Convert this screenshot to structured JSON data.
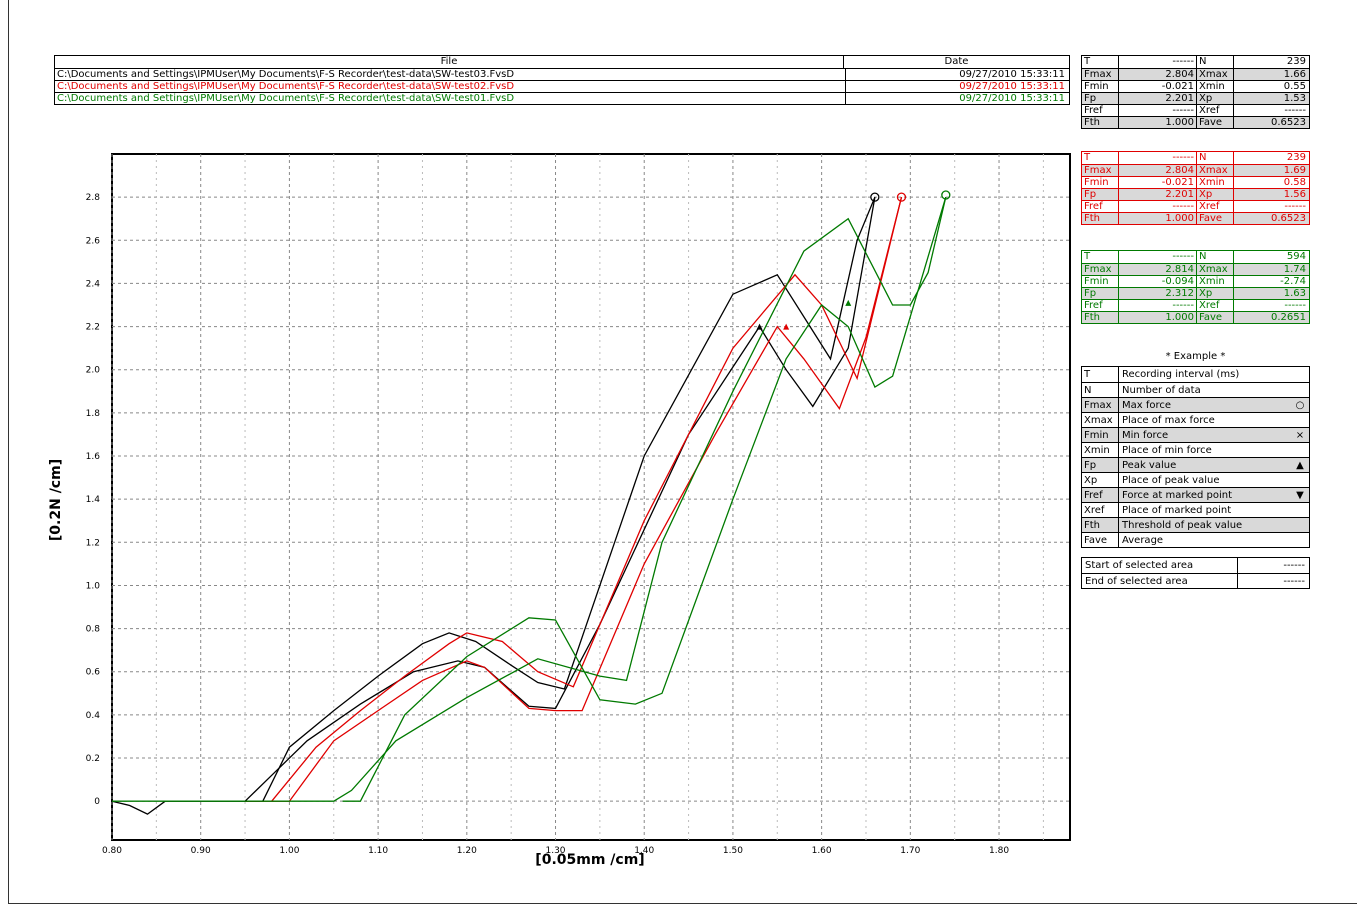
{
  "file_table": {
    "headers": {
      "file": "File",
      "date": "Date"
    },
    "rows": [
      {
        "file": "C:\\Documents and Settings\\IPMUser\\My Documents\\F-S Recorder\\test-data\\SW-test03.FvsD",
        "date": "09/27/2010 15:33:11",
        "color": "#000000"
      },
      {
        "file": "C:\\Documents and Settings\\IPMUser\\My Documents\\F-S Recorder\\test-data\\SW-test02.FvsD",
        "date": "09/27/2010 15:33:11",
        "color": "#e00000"
      },
      {
        "file": "C:\\Documents and Settings\\IPMUser\\My Documents\\F-S Recorder\\test-data\\SW-test01.FvsD",
        "date": "09/27/2010 15:33:11",
        "color": "#007a00"
      }
    ]
  },
  "stats": [
    {
      "color": "#000000",
      "rows": [
        {
          "k1": "T",
          "v1": "------",
          "k2": "N",
          "v2": "239"
        },
        {
          "k1": "Fmax",
          "v1": "2.804",
          "k2": "Xmax",
          "v2": "1.66"
        },
        {
          "k1": "Fmin",
          "v1": "-0.021",
          "k2": "Xmin",
          "v2": "0.55"
        },
        {
          "k1": "Fp",
          "v1": "2.201",
          "k2": "Xp",
          "v2": "1.53"
        },
        {
          "k1": "Fref",
          "v1": "------",
          "k2": "Xref",
          "v2": "------"
        },
        {
          "k1": "Fth",
          "v1": "1.000",
          "k2": "Fave",
          "v2": "0.6523"
        }
      ]
    },
    {
      "color": "#e00000",
      "rows": [
        {
          "k1": "T",
          "v1": "------",
          "k2": "N",
          "v2": "239"
        },
        {
          "k1": "Fmax",
          "v1": "2.804",
          "k2": "Xmax",
          "v2": "1.69"
        },
        {
          "k1": "Fmin",
          "v1": "-0.021",
          "k2": "Xmin",
          "v2": "0.58"
        },
        {
          "k1": "Fp",
          "v1": "2.201",
          "k2": "Xp",
          "v2": "1.56"
        },
        {
          "k1": "Fref",
          "v1": "------",
          "k2": "Xref",
          "v2": "------"
        },
        {
          "k1": "Fth",
          "v1": "1.000",
          "k2": "Fave",
          "v2": "0.6523"
        }
      ]
    },
    {
      "color": "#007a00",
      "rows": [
        {
          "k1": "T",
          "v1": "------",
          "k2": "N",
          "v2": "594"
        },
        {
          "k1": "Fmax",
          "v1": "2.814",
          "k2": "Xmax",
          "v2": "1.74"
        },
        {
          "k1": "Fmin",
          "v1": "-0.094",
          "k2": "Xmin",
          "v2": "-2.74"
        },
        {
          "k1": "Fp",
          "v1": "2.312",
          "k2": "Xp",
          "v2": "1.63"
        },
        {
          "k1": "Fref",
          "v1": "------",
          "k2": "Xref",
          "v2": "------"
        },
        {
          "k1": "Fth",
          "v1": "1.000",
          "k2": "Fave",
          "v2": "0.2651"
        }
      ]
    }
  ],
  "legend": {
    "title": "* Example *",
    "rows": [
      {
        "k": "T",
        "d": "Recording interval (ms)",
        "s": ""
      },
      {
        "k": "N",
        "d": "Number of data",
        "s": ""
      },
      {
        "k": "Fmax",
        "d": "Max force",
        "s": "○"
      },
      {
        "k": "Xmax",
        "d": "Place of max force",
        "s": ""
      },
      {
        "k": "Fmin",
        "d": "Min force",
        "s": "×"
      },
      {
        "k": "Xmin",
        "d": "Place of min force",
        "s": ""
      },
      {
        "k": "Fp",
        "d": "Peak value",
        "s": "▲"
      },
      {
        "k": "Xp",
        "d": "Place of peak value",
        "s": ""
      },
      {
        "k": "Fref",
        "d": "Force at marked point",
        "s": "▼"
      },
      {
        "k": "Xref",
        "d": "Place of marked point",
        "s": ""
      },
      {
        "k": "Fth",
        "d": "Threshold of peak value",
        "s": ""
      },
      {
        "k": "Fave",
        "d": "Average",
        "s": ""
      }
    ]
  },
  "selected_area": [
    {
      "d": "Start of selected area",
      "v": "------"
    },
    {
      "d": "End of selected area",
      "v": "------"
    }
  ],
  "chart_data": {
    "type": "line",
    "xlabel": "[0.05mm /cm]",
    "ylabel": "[0.2N /cm]",
    "xlim": [
      0.8,
      1.88
    ],
    "ylim": [
      -0.18,
      3.0
    ],
    "xticks": [
      0.8,
      0.9,
      1.0,
      1.1,
      1.2,
      1.3,
      1.4,
      1.5,
      1.6,
      1.7,
      1.8
    ],
    "xtick_labels": [
      "0.80",
      "0.90",
      "1.00",
      "1.10",
      "1.20",
      "1.30",
      "1.40",
      "1.50",
      "1.60",
      "1.70",
      "1.80"
    ],
    "yticks": [
      0,
      0.2,
      0.4,
      0.6,
      0.8,
      1.0,
      1.2,
      1.4,
      1.6,
      1.8,
      2.0,
      2.2,
      2.4,
      2.6,
      2.8
    ],
    "ytick_labels": [
      "0",
      "0.2",
      "0.4",
      "0.6",
      "0.8",
      "1.0",
      "1.2",
      "1.4",
      "1.6",
      "1.8",
      "2.0",
      "2.2",
      "2.4",
      "2.6",
      "2.8"
    ],
    "grid": true,
    "series": [
      {
        "color": "#000000",
        "x": [
          0.8,
          0.82,
          0.84,
          0.86,
          0.9,
          0.95,
          0.97,
          1.0,
          1.05,
          1.1,
          1.15,
          1.18,
          1.21,
          1.25,
          1.28,
          1.31,
          1.4,
          1.5,
          1.55,
          1.61,
          1.64,
          1.66
        ],
        "y": [
          0.0,
          -0.02,
          -0.06,
          0.0,
          0.0,
          0.0,
          0.0,
          0.25,
          0.42,
          0.58,
          0.73,
          0.78,
          0.74,
          0.63,
          0.55,
          0.52,
          1.6,
          2.35,
          2.44,
          2.05,
          2.6,
          2.8
        ]
      },
      {
        "color": "#000000",
        "x": [
          0.95,
          0.98,
          1.02,
          1.08,
          1.14,
          1.19,
          1.22,
          1.27,
          1.3,
          1.35,
          1.45,
          1.53,
          1.56,
          1.59,
          1.63,
          1.66
        ],
        "y": [
          0.0,
          0.12,
          0.28,
          0.45,
          0.6,
          0.65,
          0.62,
          0.44,
          0.43,
          0.82,
          1.7,
          2.2,
          2.0,
          1.83,
          2.1,
          2.8
        ]
      },
      {
        "color": "#e00000",
        "x": [
          0.95,
          0.98,
          1.03,
          1.08,
          1.13,
          1.18,
          1.2,
          1.24,
          1.28,
          1.32,
          1.4,
          1.5,
          1.57,
          1.6,
          1.64,
          1.69
        ],
        "y": [
          0.0,
          0.0,
          0.25,
          0.42,
          0.58,
          0.73,
          0.78,
          0.74,
          0.6,
          0.53,
          1.3,
          2.1,
          2.44,
          2.3,
          1.96,
          2.8
        ]
      },
      {
        "color": "#e00000",
        "x": [
          0.98,
          1.0,
          1.05,
          1.1,
          1.15,
          1.2,
          1.22,
          1.27,
          1.3,
          1.33,
          1.4,
          1.48,
          1.55,
          1.58,
          1.62,
          1.65,
          1.69
        ],
        "y": [
          0.0,
          0.0,
          0.28,
          0.42,
          0.56,
          0.65,
          0.62,
          0.43,
          0.42,
          0.42,
          1.1,
          1.7,
          2.2,
          2.05,
          1.82,
          2.15,
          2.8
        ]
      },
      {
        "color": "#007a00",
        "x": [
          0.8,
          0.9,
          1.05,
          1.07,
          1.12,
          1.2,
          1.28,
          1.35,
          1.38,
          1.42,
          1.5,
          1.58,
          1.63,
          1.68,
          1.7,
          1.72,
          1.74
        ],
        "y": [
          0.0,
          0.0,
          0.0,
          0.05,
          0.28,
          0.48,
          0.66,
          0.58,
          0.56,
          1.2,
          1.9,
          2.55,
          2.7,
          2.3,
          2.3,
          2.45,
          2.8
        ]
      },
      {
        "color": "#007a00",
        "x": [
          1.06,
          1.08,
          1.13,
          1.2,
          1.27,
          1.3,
          1.35,
          1.39,
          1.42,
          1.5,
          1.56,
          1.6,
          1.63,
          1.66,
          1.68,
          1.74
        ],
        "y": [
          0.0,
          0.0,
          0.4,
          0.67,
          0.85,
          0.84,
          0.47,
          0.45,
          0.5,
          1.4,
          2.05,
          2.3,
          2.2,
          1.92,
          1.97,
          2.8
        ]
      }
    ],
    "markers": [
      {
        "type": "max",
        "x": 1.66,
        "y": 2.8,
        "color": "#000000"
      },
      {
        "type": "max",
        "x": 1.69,
        "y": 2.8,
        "color": "#e00000"
      },
      {
        "type": "max",
        "x": 1.74,
        "y": 2.81,
        "color": "#007a00"
      },
      {
        "type": "peak",
        "x": 1.53,
        "y": 2.2,
        "color": "#000000"
      },
      {
        "type": "peak",
        "x": 1.56,
        "y": 2.2,
        "color": "#e00000"
      },
      {
        "type": "peak",
        "x": 1.63,
        "y": 2.31,
        "color": "#007a00"
      }
    ]
  }
}
